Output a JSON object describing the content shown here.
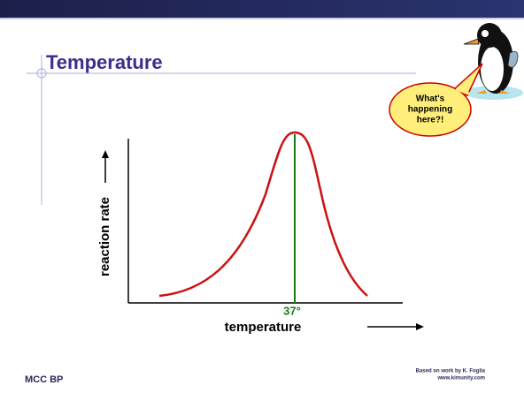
{
  "slide": {
    "title": "Temperature",
    "callout": [
      "What's",
      "happening",
      "here?!"
    ],
    "diagram": {
      "y_label": "reaction rate",
      "x_label": "temperature",
      "peak_label": "37°"
    },
    "footer": {
      "left": "MCC BP",
      "credit": "Based on work by K. Foglia",
      "url": "www.kimunity.com"
    }
  }
}
